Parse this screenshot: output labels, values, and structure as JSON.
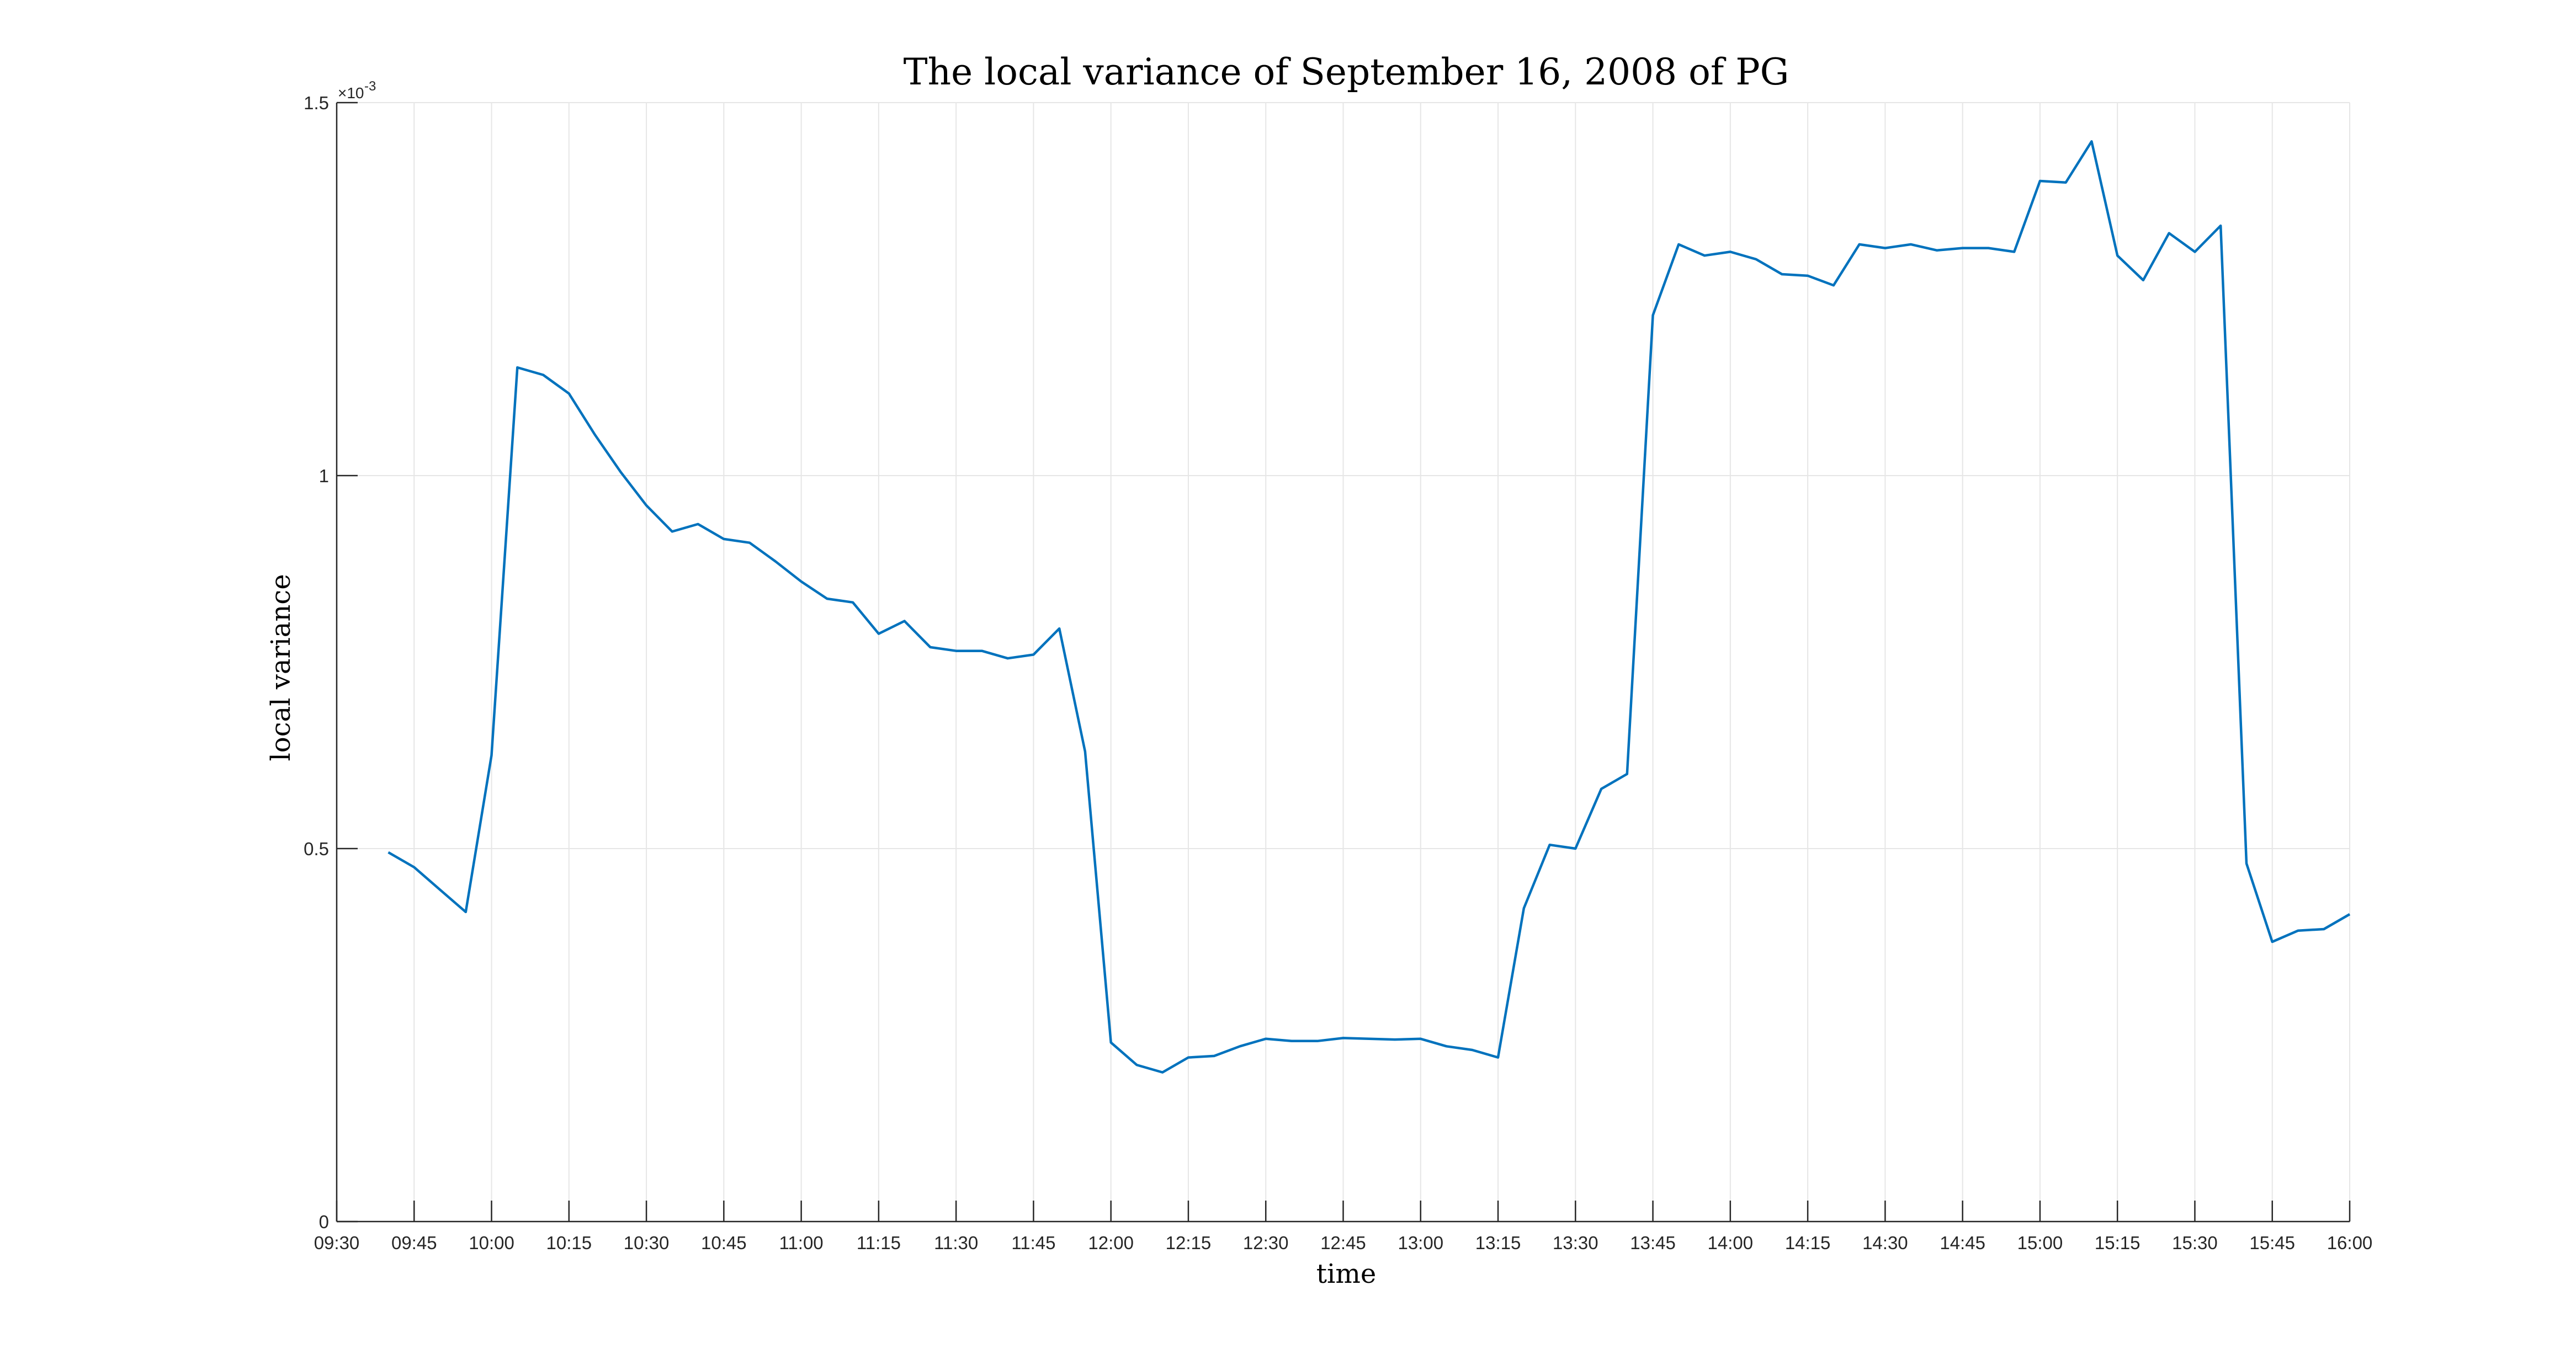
{
  "chart_data": {
    "type": "line",
    "title": "The local variance of September 16, 2008 of PG",
    "xlabel": "time",
    "ylabel": "local variance",
    "y_exponent_base": "×10",
    "y_exponent_power": "-3",
    "xlim": [
      "09:30",
      "16:00"
    ],
    "ylim": [
      0,
      1.5
    ],
    "x_ticks": [
      "09:30",
      "09:45",
      "10:00",
      "10:15",
      "10:30",
      "10:45",
      "11:00",
      "11:15",
      "11:30",
      "11:45",
      "12:00",
      "12:15",
      "12:30",
      "12:45",
      "13:00",
      "13:15",
      "13:30",
      "13:45",
      "14:00",
      "14:15",
      "14:30",
      "14:45",
      "15:00",
      "15:15",
      "15:30",
      "15:45",
      "16:00"
    ],
    "y_ticks": [
      "0",
      "0.5",
      "1",
      "1.5"
    ],
    "y_tick_values": [
      0,
      0.5,
      1,
      1.5
    ],
    "grid": true,
    "series": [
      {
        "color": "#0072bd",
        "points": [
          [
            "09:40",
            0.495
          ],
          [
            "09:45",
            0.475
          ],
          [
            "09:50",
            0.445
          ],
          [
            "09:55",
            0.415
          ],
          [
            "10:00",
            0.625
          ],
          [
            "10:05",
            1.145
          ],
          [
            "10:10",
            1.135
          ],
          [
            "10:15",
            1.11
          ],
          [
            "10:20",
            1.055
          ],
          [
            "10:25",
            1.005
          ],
          [
            "10:30",
            0.96
          ],
          [
            "10:35",
            0.925
          ],
          [
            "10:40",
            0.935
          ],
          [
            "10:45",
            0.915
          ],
          [
            "10:50",
            0.91
          ],
          [
            "10:55",
            0.885
          ],
          [
            "11:00",
            0.858
          ],
          [
            "11:05",
            0.835
          ],
          [
            "11:10",
            0.83
          ],
          [
            "11:15",
            0.788
          ],
          [
            "11:20",
            0.805
          ],
          [
            "11:25",
            0.77
          ],
          [
            "11:30",
            0.765
          ],
          [
            "11:35",
            0.765
          ],
          [
            "11:40",
            0.755
          ],
          [
            "11:45",
            0.76
          ],
          [
            "11:50",
            0.795
          ],
          [
            "11:55",
            0.63
          ],
          [
            "12:00",
            0.24
          ],
          [
            "12:05",
            0.21
          ],
          [
            "12:10",
            0.2
          ],
          [
            "12:15",
            0.22
          ],
          [
            "12:20",
            0.222
          ],
          [
            "12:25",
            0.235
          ],
          [
            "12:30",
            0.245
          ],
          [
            "12:35",
            0.242
          ],
          [
            "12:40",
            0.242
          ],
          [
            "12:45",
            0.246
          ],
          [
            "12:50",
            0.245
          ],
          [
            "12:55",
            0.244
          ],
          [
            "13:00",
            0.245
          ],
          [
            "13:05",
            0.235
          ],
          [
            "13:10",
            0.23
          ],
          [
            "13:15",
            0.22
          ],
          [
            "13:20",
            0.42
          ],
          [
            "13:25",
            0.505
          ],
          [
            "13:30",
            0.5
          ],
          [
            "13:35",
            0.58
          ],
          [
            "13:40",
            0.6
          ],
          [
            "13:45",
            1.215
          ],
          [
            "13:50",
            1.31
          ],
          [
            "13:55",
            1.295
          ],
          [
            "14:00",
            1.3
          ],
          [
            "14:05",
            1.29
          ],
          [
            "14:10",
            1.27
          ],
          [
            "14:15",
            1.268
          ],
          [
            "14:20",
            1.255
          ],
          [
            "14:25",
            1.31
          ],
          [
            "14:30",
            1.305
          ],
          [
            "14:35",
            1.31
          ],
          [
            "14:40",
            1.302
          ],
          [
            "14:45",
            1.305
          ],
          [
            "14:50",
            1.305
          ],
          [
            "14:55",
            1.3
          ],
          [
            "15:00",
            1.395
          ],
          [
            "15:05",
            1.393
          ],
          [
            "15:10",
            1.448
          ],
          [
            "15:15",
            1.295
          ],
          [
            "15:20",
            1.262
          ],
          [
            "15:25",
            1.325
          ],
          [
            "15:30",
            1.3
          ],
          [
            "15:35",
            1.335
          ],
          [
            "15:40",
            0.48
          ],
          [
            "15:45",
            0.375
          ],
          [
            "15:50",
            0.39
          ],
          [
            "15:55",
            0.392
          ],
          [
            "16:00",
            0.412
          ]
        ]
      }
    ]
  }
}
